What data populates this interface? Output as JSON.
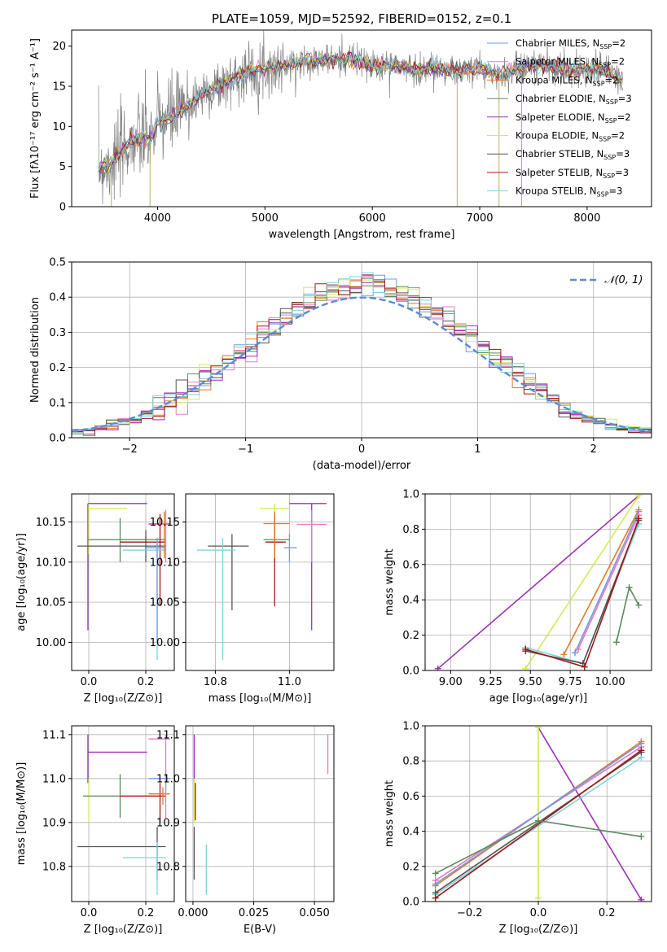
{
  "figure": {
    "title": "PLATE=1059, MJD=52592, FIBERID=0152, z=0.1"
  },
  "colors": {
    "chabrier_miles": "#6f9be0",
    "salpeter_miles": "#e878c4",
    "kroupa_miles": "#e27a26",
    "chabrier_elodie": "#5b8a5e",
    "salpeter_elodie": "#9b32b6",
    "kroupa_elodie": "#d4e85a",
    "chabrier_stelib": "#555555",
    "salpeter_stelib": "#a01818",
    "kroupa_stelib": "#7fd3da",
    "data": "#808080",
    "normal": "#5b8ad8"
  },
  "chart_data": [
    {
      "id": "spectrum",
      "type": "line",
      "title": "PLATE=1059, MJD=52592, FIBERID=0152, z=0.1",
      "xlabel": "wavelength [Angstrom, rest frame]",
      "ylabel": "Flux [fλ10⁻¹⁷ erg cm⁻² s⁻¹ A⁻¹]",
      "xlim": [
        3200,
        8600
      ],
      "ylim": [
        0,
        22
      ],
      "xticks": [
        4000,
        5000,
        6000,
        7000,
        8000
      ],
      "yticks": [
        0,
        5,
        10,
        15,
        20
      ],
      "grid": false,
      "legend": "top-right",
      "spectrum_shape": {
        "x": [
          3450,
          3550,
          3650,
          3750,
          3850,
          3950,
          4000,
          4100,
          4200,
          4300,
          4400,
          4600,
          4800,
          5000,
          5200,
          5400,
          5600,
          5800,
          6000,
          6200,
          6400,
          6600,
          6800,
          7000,
          7200,
          7400,
          7600,
          7800,
          8000,
          8200,
          8330
        ],
        "y": [
          5.0,
          5.2,
          6.5,
          8.2,
          8.5,
          8.6,
          10.5,
          11.0,
          11.8,
          12.6,
          14.0,
          15.2,
          16.6,
          17.2,
          17.6,
          18.3,
          18.2,
          18.5,
          17.5,
          17.6,
          17.0,
          17.4,
          16.8,
          17.3,
          16.3,
          17.5,
          17.6,
          17.0,
          17.2,
          16.8,
          15.8
        ]
      },
      "series": [
        {
          "name": "Chabrier MILES, N",
          "sub": "SSP",
          "suffix": "=2",
          "color": "#6f9be0"
        },
        {
          "name": "Salpeter MILES, N",
          "sub": "SSP",
          "suffix": "=2",
          "color": "#e878c4"
        },
        {
          "name": "Kroupa MILES, N",
          "sub": "SSP",
          "suffix": "=2",
          "color": "#e27a26"
        },
        {
          "name": "Chabrier ELODIE, N",
          "sub": "SSP",
          "suffix": "=3",
          "color": "#5b8a5e"
        },
        {
          "name": "Salpeter ELODIE, N",
          "sub": "SSP",
          "suffix": "=2",
          "color": "#9b32b6"
        },
        {
          "name": "Kroupa ELODIE, N",
          "sub": "SSP",
          "suffix": "=2",
          "color": "#d4e85a"
        },
        {
          "name": "Chabrier STELIB, N",
          "sub": "SSP",
          "suffix": "=3",
          "color": "#555555"
        },
        {
          "name": "Salpeter STELIB, N",
          "sub": "SSP",
          "suffix": "=3",
          "color": "#a01818"
        },
        {
          "name": "Kroupa STELIB, N",
          "sub": "SSP",
          "suffix": "=3",
          "color": "#7fd3da"
        }
      ]
    },
    {
      "id": "residuals",
      "type": "line",
      "xlabel": "(data-model)/error",
      "ylabel": "Normed distribution",
      "xlim": [
        -2.5,
        2.5
      ],
      "ylim": [
        0,
        0.5
      ],
      "xticks": [
        -2,
        -1,
        0,
        1,
        2
      ],
      "yticks": [
        0.0,
        0.1,
        0.2,
        0.3,
        0.4,
        0.5
      ],
      "grid": true,
      "legend": "top-right",
      "legend_label": "𝒩(0, 1)",
      "bin_width": 0.1
    },
    {
      "id": "age_vs_z",
      "type": "scatter",
      "xlabel": "Z [log₁₀(Z/Z⊙)]",
      "ylabel": "age  [log₁₀(age/yr)]",
      "xlim": [
        -0.06,
        0.3
      ],
      "ylim": [
        9.965,
        10.185
      ],
      "xticks": [
        0.0,
        0.2
      ],
      "yticks": [
        10.0,
        10.05,
        10.1,
        10.15
      ],
      "grid": true,
      "points": [
        {
          "color": "#9b32b6",
          "x": -0.003,
          "y": 10.173,
          "xlo": -0.003,
          "xhi": 0.205,
          "ylo": 10.015,
          "yhi": 10.173
        },
        {
          "color": "#d4e85a",
          "x": 0.0,
          "y": 10.167,
          "xlo": -0.003,
          "xhi": 0.135,
          "ylo": 10.11,
          "yhi": 10.173
        },
        {
          "color": "#5b8a5e",
          "x": 0.11,
          "y": 10.128,
          "xlo": -0.005,
          "xhi": 0.27,
          "ylo": 10.1,
          "yhi": 10.155
        },
        {
          "color": "#555555",
          "x": 0.2,
          "y": 10.12,
          "xlo": -0.04,
          "xhi": 0.27,
          "ylo": 10.1,
          "yhi": 10.14
        },
        {
          "color": "#a01818",
          "x": 0.25,
          "y": 10.125,
          "xlo": 0.11,
          "xhi": 0.27,
          "ylo": 10.045,
          "yhi": 10.16
        },
        {
          "color": "#7fd3da",
          "x": 0.24,
          "y": 10.115,
          "xlo": 0.12,
          "xhi": 0.27,
          "ylo": 9.978,
          "yhi": 10.13
        },
        {
          "color": "#6f9be0",
          "x": 0.24,
          "y": 10.118,
          "xlo": 0.2,
          "xhi": 0.27,
          "ylo": 10.0,
          "yhi": 10.13
        },
        {
          "color": "#e878c4",
          "x": 0.27,
          "y": 10.147,
          "xlo": 0.21,
          "xhi": 0.285,
          "ylo": 10.1,
          "yhi": 10.165
        },
        {
          "color": "#e27a26",
          "x": 0.265,
          "y": 10.148,
          "xlo": 0.21,
          "xhi": 0.285,
          "ylo": 10.105,
          "yhi": 10.163
        }
      ]
    },
    {
      "id": "age_vs_mass",
      "type": "scatter",
      "xlabel": "mass [log₁₀(M/M⊙)]",
      "xlim": [
        10.72,
        11.12
      ],
      "ylim": [
        9.965,
        10.185
      ],
      "xticks": [
        10.8,
        11.0
      ],
      "yticks": [
        10.0,
        10.05,
        10.1,
        10.15
      ],
      "grid": true,
      "points": [
        {
          "color": "#9b32b6",
          "x": 11.06,
          "y": 10.173,
          "xlo": 11.0,
          "xhi": 11.1,
          "ylo": 10.015,
          "yhi": 10.173
        },
        {
          "color": "#d4e85a",
          "x": 10.96,
          "y": 10.167,
          "xlo": 10.92,
          "xhi": 11.0,
          "ylo": 10.11,
          "yhi": 10.173
        },
        {
          "color": "#5b8a5e",
          "x": 10.96,
          "y": 10.128,
          "xlo": 10.93,
          "xhi": 11.0,
          "ylo": 10.1,
          "yhi": 10.155
        },
        {
          "color": "#555555",
          "x": 10.845,
          "y": 10.12,
          "xlo": 10.78,
          "xhi": 10.89,
          "ylo": 10.04,
          "yhi": 10.135
        },
        {
          "color": "#a01818",
          "x": 10.96,
          "y": 10.125,
          "xlo": 10.935,
          "xhi": 10.99,
          "ylo": 10.045,
          "yhi": 10.16
        },
        {
          "color": "#7fd3da",
          "x": 10.82,
          "y": 10.115,
          "xlo": 10.75,
          "xhi": 10.855,
          "ylo": 9.978,
          "yhi": 10.13
        },
        {
          "color": "#6f9be0",
          "x": 11.0,
          "y": 10.118,
          "xlo": 10.985,
          "xhi": 11.02,
          "ylo": 10.1,
          "yhi": 10.135
        },
        {
          "color": "#e878c4",
          "x": 11.06,
          "y": 10.147,
          "xlo": 11.02,
          "xhi": 11.1,
          "ylo": 10.1,
          "yhi": 10.165
        },
        {
          "color": "#e27a26",
          "x": 10.96,
          "y": 10.148,
          "xlo": 10.93,
          "xhi": 11.0,
          "ylo": 10.105,
          "yhi": 10.163
        }
      ]
    },
    {
      "id": "weight_vs_age",
      "type": "line",
      "xlabel": "age  [log₁₀(age/yr)]",
      "ylabel": "mass weight",
      "xlim": [
        8.84,
        10.26
      ],
      "ylim": [
        0,
        1
      ],
      "xticks": [
        9.0,
        9.25,
        9.5,
        9.75,
        10.0
      ],
      "yticks": [
        0.0,
        0.2,
        0.4,
        0.6,
        0.8,
        1.0
      ],
      "grid": true,
      "series": [
        {
          "color": "#9b32b6",
          "x": [
            8.92,
            10.18
          ],
          "y": [
            0.01,
            0.99
          ]
        },
        {
          "color": "#d4e85a",
          "x": [
            9.47,
            10.18
          ],
          "y": [
            0.01,
            0.99
          ]
        },
        {
          "color": "#e27a26",
          "x": [
            9.71,
            10.18
          ],
          "y": [
            0.09,
            0.91
          ]
        },
        {
          "color": "#6f9be0",
          "x": [
            9.78,
            10.18
          ],
          "y": [
            0.1,
            0.9
          ]
        },
        {
          "color": "#e878c4",
          "x": [
            9.8,
            10.18
          ],
          "y": [
            0.12,
            0.88
          ]
        },
        {
          "color": "#7fd3da",
          "x": [
            9.47,
            9.83,
            10.18
          ],
          "y": [
            0.13,
            0.04,
            0.83
          ]
        },
        {
          "color": "#555555",
          "x": [
            9.47,
            9.83,
            10.18
          ],
          "y": [
            0.11,
            0.04,
            0.85
          ]
        },
        {
          "color": "#a01818",
          "x": [
            9.47,
            9.84,
            10.18
          ],
          "y": [
            0.12,
            0.02,
            0.86
          ]
        },
        {
          "color": "#5b8a5e",
          "x": [
            10.04,
            10.12,
            10.18
          ],
          "y": [
            0.16,
            0.47,
            0.37
          ]
        }
      ]
    },
    {
      "id": "mass_vs_z",
      "type": "scatter",
      "xlabel": "Z [log₁₀(Z/Z⊙)]",
      "ylabel": "mass [log₁₀(M/M⊙)]",
      "xlim": [
        -0.06,
        0.3
      ],
      "ylim": [
        10.72,
        11.12
      ],
      "xticks": [
        0.0,
        0.2
      ],
      "yticks": [
        10.8,
        10.9,
        11.0,
        11.1
      ],
      "grid": true,
      "points": [
        {
          "color": "#9b32b6",
          "x": -0.003,
          "y": 11.06,
          "xlo": -0.003,
          "xhi": 0.205,
          "ylo": 10.99,
          "yhi": 11.1
        },
        {
          "color": "#d4e85a",
          "x": 0.0,
          "y": 10.96,
          "xlo": -0.02,
          "xhi": 0.25,
          "ylo": 10.9,
          "yhi": 11.0
        },
        {
          "color": "#5b8a5e",
          "x": 0.11,
          "y": 10.96,
          "xlo": -0.02,
          "xhi": 0.27,
          "ylo": 10.91,
          "yhi": 11.01
        },
        {
          "color": "#555555",
          "x": 0.24,
          "y": 10.845,
          "xlo": -0.04,
          "xhi": 0.27,
          "ylo": 10.77,
          "yhi": 10.89
        },
        {
          "color": "#a01818",
          "x": 0.25,
          "y": 10.96,
          "xlo": 0.11,
          "xhi": 0.27,
          "ylo": 10.9,
          "yhi": 10.99
        },
        {
          "color": "#7fd3da",
          "x": 0.24,
          "y": 10.82,
          "xlo": 0.12,
          "xhi": 0.27,
          "ylo": 10.735,
          "yhi": 10.855
        },
        {
          "color": "#6f9be0",
          "x": 0.27,
          "y": 11.0,
          "xlo": 0.21,
          "xhi": 0.285,
          "ylo": 10.97,
          "yhi": 11.02
        },
        {
          "color": "#e878c4",
          "x": 0.27,
          "y": 11.09,
          "xlo": 0.21,
          "xhi": 0.285,
          "ylo": 10.91,
          "yhi": 11.1
        },
        {
          "color": "#e27a26",
          "x": 0.26,
          "y": 10.965,
          "xlo": 0.21,
          "xhi": 0.285,
          "ylo": 10.94,
          "yhi": 10.98
        }
      ]
    },
    {
      "id": "mass_vs_ebv",
      "type": "scatter",
      "xlabel": "E(B-V)",
      "xlim": [
        -0.003,
        0.058
      ],
      "ylim": [
        10.72,
        11.12
      ],
      "xticks": [
        0.0,
        0.025,
        0.05
      ],
      "xticklabels": [
        "0.000",
        "0.025",
        "0.050"
      ],
      "yticks": [
        10.8,
        10.9,
        11.0,
        11.1
      ],
      "grid": true,
      "points": [
        {
          "color": "#9b32b6",
          "x": 0.0005,
          "y": 11.06,
          "xlo": 0.0005,
          "xhi": 0.0005,
          "ylo": 10.99,
          "yhi": 11.1
        },
        {
          "color": "#d4e85a",
          "x": 0.0005,
          "y": 10.96,
          "xlo": 0.0005,
          "xhi": 0.0005,
          "ylo": 10.9,
          "yhi": 11.0
        },
        {
          "color": "#555555",
          "x": 0.0005,
          "y": 10.845,
          "xlo": 0.0005,
          "xhi": 0.0005,
          "ylo": 10.77,
          "yhi": 10.89
        },
        {
          "color": "#a01818",
          "x": 0.001,
          "y": 10.96,
          "xlo": 0.001,
          "xhi": 0.001,
          "ylo": 10.905,
          "yhi": 10.99
        },
        {
          "color": "#7fd3da",
          "x": 0.0055,
          "y": 10.8,
          "xlo": 0.0055,
          "xhi": 0.0055,
          "ylo": 10.735,
          "yhi": 10.85
        },
        {
          "color": "#e878c4",
          "x": 0.0555,
          "y": 11.05,
          "xlo": 0.0555,
          "xhi": 0.0555,
          "ylo": 11.01,
          "yhi": 11.1
        }
      ]
    },
    {
      "id": "weight_vs_z",
      "type": "line",
      "xlabel": "Z [log₁₀(Z/Z⊙)]",
      "ylabel": "mass weight",
      "xlim": [
        -0.33,
        0.33
      ],
      "ylim": [
        0,
        1
      ],
      "xticks": [
        -0.2,
        0.0,
        0.2
      ],
      "yticks": [
        0.0,
        0.2,
        0.4,
        0.6,
        0.8,
        1.0
      ],
      "grid": true,
      "series": [
        {
          "color": "#9b32b6",
          "x": [
            0.0,
            0.3
          ],
          "y": [
            0.99,
            0.01
          ]
        },
        {
          "color": "#d4e85a",
          "x": [
            0.0,
            0.0
          ],
          "y": [
            0.99,
            0.02
          ]
        },
        {
          "color": "#e27a26",
          "x": [
            -0.3,
            0.3
          ],
          "y": [
            0.09,
            0.91
          ]
        },
        {
          "color": "#e878c4",
          "x": [
            -0.3,
            0.3
          ],
          "y": [
            0.12,
            0.88
          ]
        },
        {
          "color": "#6f9be0",
          "x": [
            -0.3,
            0.3
          ],
          "y": [
            0.1,
            0.9
          ]
        },
        {
          "color": "#7fd3da",
          "x": [
            -0.3,
            0.3
          ],
          "y": [
            0.04,
            0.82
          ]
        },
        {
          "color": "#555555",
          "x": [
            -0.3,
            0.3
          ],
          "y": [
            0.05,
            0.85
          ]
        },
        {
          "color": "#a01818",
          "x": [
            -0.3,
            0.3
          ],
          "y": [
            0.02,
            0.86
          ]
        },
        {
          "color": "#5b8a5e",
          "x": [
            -0.3,
            0.0,
            0.3
          ],
          "y": [
            0.16,
            0.46,
            0.37
          ]
        }
      ]
    }
  ]
}
